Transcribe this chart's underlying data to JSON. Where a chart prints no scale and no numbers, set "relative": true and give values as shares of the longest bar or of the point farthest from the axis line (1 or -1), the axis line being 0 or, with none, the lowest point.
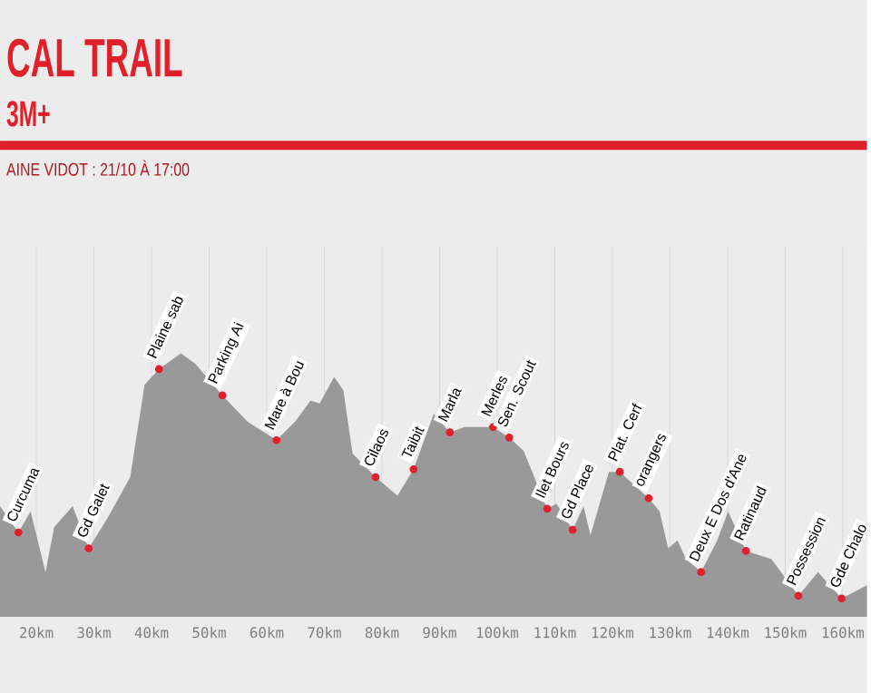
{
  "chart_data": {
    "type": "area",
    "title": "CAL TRAIL",
    "subtitle": "3M+",
    "relative": true,
    "grid": "x",
    "xlim": [
      13.7,
      164.2
    ],
    "xticks": [
      {
        "value": 20,
        "label": "20km"
      },
      {
        "value": 30,
        "label": "30km"
      },
      {
        "value": 40,
        "label": "40km"
      },
      {
        "value": 50,
        "label": "50km"
      },
      {
        "value": 60,
        "label": "60km"
      },
      {
        "value": 70,
        "label": "70km"
      },
      {
        "value": 80,
        "label": "80km"
      },
      {
        "value": 90,
        "label": "90km"
      },
      {
        "value": 100,
        "label": "100km"
      },
      {
        "value": 110,
        "label": "110km"
      },
      {
        "value": 120,
        "label": "120km"
      },
      {
        "value": 130,
        "label": "130km"
      },
      {
        "value": 140,
        "label": "140km"
      },
      {
        "value": 150,
        "label": "150km"
      },
      {
        "value": 160,
        "label": "160km"
      }
    ],
    "series": [
      {
        "color": "#999999",
        "x": [
          13.7,
          16.9,
          19,
          21.6,
          23.1,
          26.3,
          29.1,
          32.5,
          36.3,
          38.8,
          41.3,
          45.1,
          47.6,
          50.4,
          52.3,
          56.7,
          61.7,
          64.9,
          67.6,
          69.2,
          71.7,
          73.3,
          74.9,
          78.9,
          82.7,
          85.5,
          89,
          91.8,
          94.3,
          97.7,
          99.3,
          102.1,
          104.6,
          106.8,
          108.7,
          110.3,
          113.1,
          115,
          116.2,
          119.4,
          121.3,
          124.1,
          126.3,
          128.2,
          129.7,
          131.3,
          132.8,
          135.4,
          138.2,
          140.1,
          143.2,
          147.6,
          152.3,
          155.7,
          159.8,
          164.2
        ],
        "values": [
          0.42,
          0.32,
          0.4,
          0.17,
          0.34,
          0.42,
          0.26,
          0.38,
          0.53,
          0.88,
          0.94,
          1.0,
          0.96,
          null,
          0.84,
          0.74,
          0.67,
          0.74,
          0.82,
          0.81,
          0.91,
          0.86,
          0.62,
          0.53,
          0.46,
          0.56,
          0.77,
          0.7,
          0.72,
          null,
          0.72,
          0.68,
          0.63,
          null,
          0.41,
          0.43,
          0.33,
          0.42,
          0.31,
          0.55,
          0.55,
          null,
          0.45,
          0.4,
          0.26,
          0.29,
          0.22,
          0.17,
          0.29,
          0.4,
          0.25,
          0.22,
          0.08,
          0.17,
          0.07,
          0.12
        ]
      }
    ],
    "annotations": [
      "AINE VIDOT : 21/10 À 17:00",
      {
        "text": "Curcuma",
        "x": 16.9,
        "y": 0.32
      },
      {
        "text": "Gd Galet",
        "x": 29.1,
        "y": 0.26
      },
      {
        "text": "Plaine sab",
        "x": 41.3,
        "y": 0.94
      },
      {
        "text": "Parking Ai",
        "x": 52.3,
        "y": 0.84
      },
      {
        "text": "Mare à Bou",
        "x": 61.7,
        "y": 0.67
      },
      {
        "text": "Cilaos",
        "x": 78.9,
        "y": 0.53
      },
      {
        "text": "Taibit",
        "x": 85.5,
        "y": 0.56
      },
      {
        "text": "Marla",
        "x": 91.8,
        "y": 0.7
      },
      {
        "text": "Merles",
        "x": 99.3,
        "y": 0.72
      },
      {
        "text": "Sen. Scout",
        "x": 102.1,
        "y": 0.68
      },
      {
        "text": "Ilet Bours",
        "x": 108.7,
        "y": 0.41
      },
      {
        "text": "Gd Place",
        "x": 113.1,
        "y": 0.33
      },
      {
        "text": "Plat. Cerf",
        "x": 121.3,
        "y": 0.55
      },
      {
        "text": "orangers",
        "x": 126.3,
        "y": 0.45
      },
      {
        "text": "Deux E Dos d'Ane",
        "x": 135.4,
        "y": 0.17
      },
      {
        "text": "Ratinaud",
        "x": 143.2,
        "y": 0.25
      },
      {
        "text": "Possession",
        "x": 152.3,
        "y": 0.08
      },
      {
        "text": "Gde Chalo",
        "x": 159.8,
        "y": 0.07
      }
    ]
  }
}
